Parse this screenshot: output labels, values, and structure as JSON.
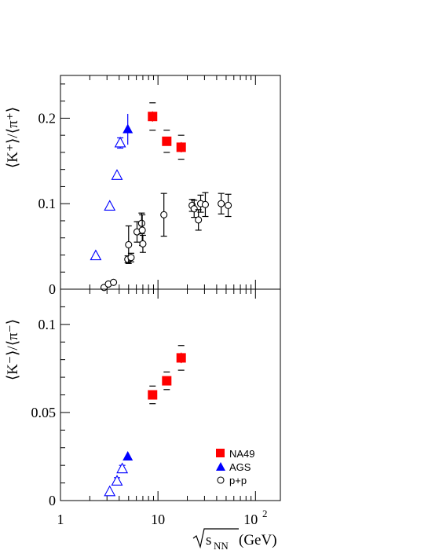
{
  "chart_data": [
    {
      "type": "scatter",
      "panel": "top",
      "ylabel": "⟨K⁺⟩/⟨π⁺⟩",
      "xscale": "log",
      "xlim": [
        1,
        180
      ],
      "ylim": [
        0,
        0.25
      ],
      "yticks": [
        "0",
        "0.1",
        "0.2"
      ],
      "series": [
        {
          "name": "NA49",
          "marker": "filled-square",
          "color": "#ff0000",
          "x": [
            8.8,
            12.3,
            17.3
          ],
          "y": [
            0.202,
            0.173,
            0.166
          ],
          "err": [
            0.006,
            0.004,
            0.006
          ],
          "sys": [
            0.016,
            0.013,
            0.014
          ]
        },
        {
          "name": "AGS",
          "marker": "filled-triangle",
          "color": "#0000ff",
          "x": [
            4.9
          ],
          "y": [
            0.187
          ],
          "err": [
            0.018
          ]
        },
        {
          "name": "AGS-open",
          "marker": "open-triangle",
          "color": "#0000ff",
          "x": [
            2.3,
            3.2,
            3.8,
            4.1
          ],
          "y": [
            0.039,
            0.097,
            0.133,
            0.171
          ],
          "err": [
            0,
            0,
            0,
            0.006
          ]
        },
        {
          "name": "p+p",
          "marker": "open-circle",
          "color": "#000000",
          "x": [
            2.8,
            3.1,
            3.5,
            4.9,
            5.0,
            5.3,
            6.1,
            6.8,
            6.9,
            7.0,
            11.5,
            22.4,
            23.5,
            26.0,
            27.4,
            30.6,
            44.5,
            52.5
          ],
          "y": [
            0.002,
            0.006,
            0.008,
            0.035,
            0.052,
            0.037,
            0.067,
            0.077,
            0.069,
            0.053,
            0.087,
            0.098,
            0.094,
            0.081,
            0.1,
            0.099,
            0.1,
            0.098
          ],
          "err": [
            0,
            0,
            0,
            0.004,
            0.022,
            0.005,
            0.012,
            0.012,
            0.018,
            0.01,
            0.025,
            0.007,
            0.01,
            0.012,
            0.01,
            0.014,
            0.012,
            0.013
          ]
        }
      ]
    },
    {
      "type": "scatter",
      "panel": "bottom",
      "ylabel": "⟨K⁻⟩/⟨π⁻⟩",
      "xlabel_base": "√s",
      "xlabel_sub": "NN",
      "xlabel_unit": " (GeV)",
      "xscale": "log",
      "xlim": [
        1,
        180
      ],
      "ylim": [
        0,
        0.12
      ],
      "yticks": [
        "0",
        "0.05",
        "0.1"
      ],
      "xticks": [
        {
          "value": 1,
          "label": "1"
        },
        {
          "value": 10,
          "label": "10"
        },
        {
          "value": 100,
          "label": "10",
          "sup": "2"
        }
      ],
      "series": [
        {
          "name": "NA49",
          "marker": "filled-square",
          "color": "#ff0000",
          "x": [
            8.8,
            12.3,
            17.3
          ],
          "y": [
            0.06,
            0.068,
            0.081
          ],
          "err": [
            0.002,
            0.002,
            0.003
          ],
          "sys": [
            0.005,
            0.005,
            0.007
          ]
        },
        {
          "name": "AGS",
          "marker": "filled-triangle",
          "color": "#0000ff",
          "x": [
            4.9
          ],
          "y": [
            0.025
          ],
          "err": [
            0.002
          ]
        },
        {
          "name": "AGS-open",
          "marker": "open-triangle",
          "color": "#0000ff",
          "x": [
            3.2,
            3.8,
            4.3
          ],
          "y": [
            0.005,
            0.011,
            0.018
          ],
          "err": [
            0,
            0.002,
            0.002
          ]
        }
      ],
      "legend": {
        "placement": "bottom-right",
        "entries": [
          {
            "label": "NA49",
            "marker": "filled-square",
            "color": "#ff0000"
          },
          {
            "label": "AGS",
            "marker": "filled-triangle",
            "color": "#0000ff"
          },
          {
            "label": "p+p",
            "marker": "open-circle",
            "color": "#000000"
          }
        ]
      }
    }
  ]
}
